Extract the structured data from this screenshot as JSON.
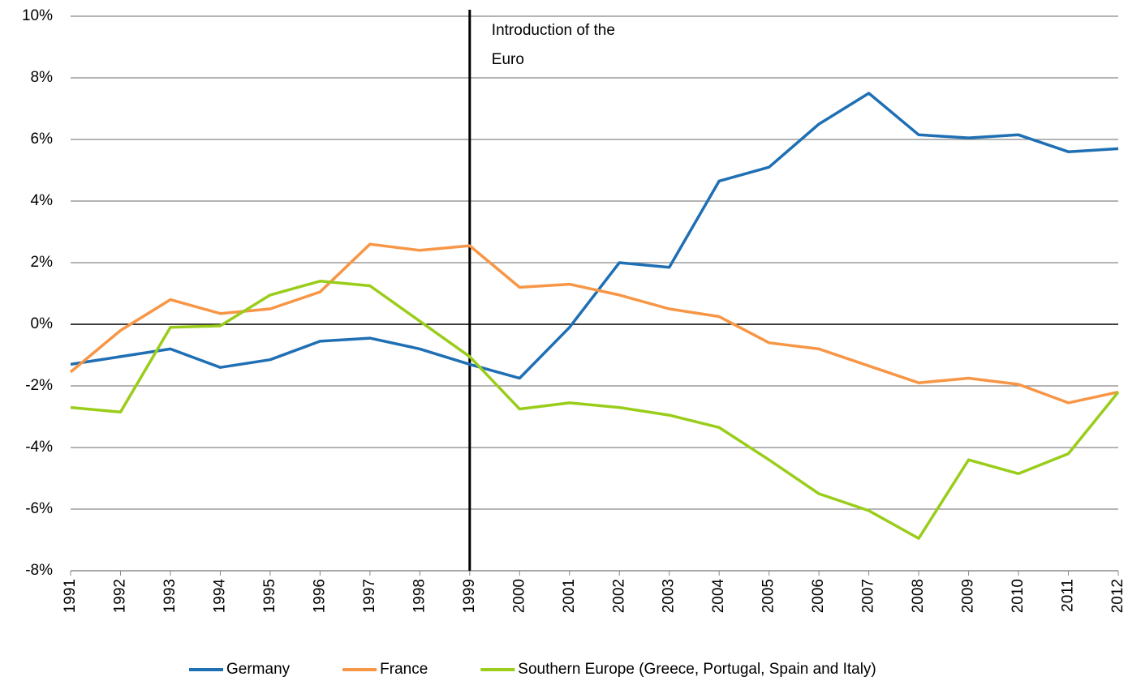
{
  "chart_data": {
    "type": "line",
    "x": [
      1991,
      1992,
      1993,
      1994,
      1995,
      1996,
      1997,
      1998,
      1999,
      2000,
      2001,
      2002,
      2003,
      2004,
      2005,
      2006,
      2007,
      2008,
      2009,
      2010,
      2011,
      2012
    ],
    "xlim": [
      1991,
      2012
    ],
    "xticks": [
      1991,
      1992,
      1993,
      1994,
      1995,
      1996,
      1997,
      1998,
      1999,
      2000,
      2001,
      2002,
      2003,
      2004,
      2005,
      2006,
      2007,
      2008,
      2009,
      2010,
      2011,
      2012
    ],
    "ylim": [
      -8,
      10
    ],
    "yticks": [
      {
        "value": -8,
        "label": "-8%"
      },
      {
        "value": -6,
        "label": "-6%"
      },
      {
        "value": -4,
        "label": "-4%"
      },
      {
        "value": -2,
        "label": "-2%"
      },
      {
        "value": 0,
        "label": "0%"
      },
      {
        "value": 2,
        "label": "2%"
      },
      {
        "value": 4,
        "label": "4%"
      },
      {
        "value": 6,
        "label": "6%"
      },
      {
        "value": 8,
        "label": "8%"
      },
      {
        "value": 10,
        "label": "10%"
      }
    ],
    "grid": true,
    "legend": "bottom",
    "annotation": {
      "text_lines": [
        "Introduction of the",
        "Euro"
      ],
      "x": 1999
    },
    "series": [
      {
        "name": "Germany",
        "color": "#1f6fb4",
        "values": [
          -1.3,
          -1.05,
          -0.8,
          -1.4,
          -1.15,
          -0.55,
          -0.45,
          -0.8,
          -1.3,
          -1.75,
          -0.1,
          2.0,
          1.85,
          4.65,
          5.1,
          6.5,
          7.5,
          6.15,
          6.05,
          6.15,
          5.6,
          5.7
        ]
      },
      {
        "name": "France",
        "color": "#f79646",
        "values": [
          -1.55,
          -0.2,
          0.8,
          0.35,
          0.5,
          1.05,
          2.6,
          2.4,
          2.55,
          1.2,
          1.3,
          0.95,
          0.5,
          0.25,
          -0.6,
          -0.8,
          -1.35,
          -1.9,
          -1.75,
          -1.95,
          -2.55,
          -2.2
        ]
      },
      {
        "name": "Southern Europe (Greece, Portugal, Spain and Italy)",
        "color": "#9acd1a",
        "values": [
          -2.7,
          -2.85,
          -0.1,
          -0.05,
          0.95,
          1.4,
          1.25,
          0.1,
          -1.05,
          -2.75,
          -2.55,
          -2.7,
          -2.95,
          -3.35,
          -4.4,
          -5.5,
          -6.05,
          -6.95,
          -4.4,
          -4.85,
          -4.2,
          -2.2
        ]
      }
    ]
  }
}
